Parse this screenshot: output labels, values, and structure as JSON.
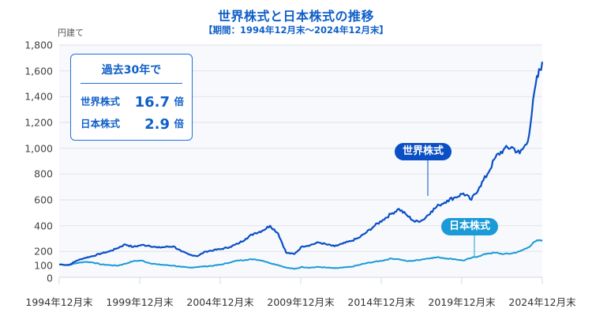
{
  "header": {
    "title": "世界株式と日本株式の推移",
    "subtitle": "【期間：1994年12月末～2024年12月末】"
  },
  "axis": {
    "unit_label": "円建て",
    "y_ticks": [
      "0",
      "100",
      "200",
      "400",
      "600",
      "800",
      "1,000",
      "1,200",
      "1,400",
      "1,600",
      "1,800"
    ],
    "x_ticks": [
      "1994年12月末",
      "1999年12月末",
      "2004年12月末",
      "2009年12月末",
      "2014年12月末",
      "2019年12月末",
      "2024年12月末"
    ]
  },
  "infobox": {
    "heading": "過去30年で",
    "rows": [
      {
        "label": "世界株式",
        "value": "16.7",
        "suffix": "倍"
      },
      {
        "label": "日本株式",
        "value": "2.9",
        "suffix": "倍"
      }
    ]
  },
  "series_labels": {
    "world": "世界株式",
    "japan": "日本株式"
  },
  "colors": {
    "world": "#0a4fc4",
    "japan": "#1a9ad6",
    "title": "#0f5fc8",
    "plot_bg": "#f7f9fd",
    "grid": "#e3e5ea"
  },
  "chart_data": {
    "type": "line",
    "title": "世界株式と日本株式の推移",
    "subtitle": "【期間：1994年12月末～2024年12月末】",
    "xlabel": "",
    "ylabel": "円建て",
    "ylim": [
      0,
      1800
    ],
    "y_ticks": [
      0,
      100,
      200,
      400,
      600,
      800,
      1000,
      1200,
      1400,
      1600,
      1800
    ],
    "x_tick_labels": [
      "1994年12月末",
      "1999年12月末",
      "2004年12月末",
      "2009年12月末",
      "2014年12月末",
      "2019年12月末",
      "2024年12月末"
    ],
    "grid": true,
    "legend": "inline labels",
    "x": [
      1994.9,
      1995.5,
      1996.0,
      1996.5,
      1997.0,
      1997.5,
      1998.0,
      1998.5,
      1999.0,
      1999.5,
      2000.0,
      2000.5,
      2001.0,
      2001.5,
      2002.0,
      2002.5,
      2003.0,
      2003.5,
      2004.0,
      2004.5,
      2005.0,
      2005.5,
      2006.0,
      2006.5,
      2007.0,
      2007.5,
      2008.0,
      2008.5,
      2009.0,
      2009.5,
      2010.0,
      2010.5,
      2011.0,
      2011.5,
      2012.0,
      2012.5,
      2013.0,
      2013.5,
      2014.0,
      2014.5,
      2015.0,
      2015.5,
      2016.0,
      2016.5,
      2017.0,
      2017.5,
      2018.0,
      2018.5,
      2019.0,
      2019.5,
      2020.0,
      2020.5,
      2021.0,
      2021.5,
      2022.0,
      2022.5,
      2023.0,
      2023.5,
      2024.0,
      2024.5,
      2024.9
    ],
    "series": [
      {
        "name": "世界株式",
        "values": [
          100,
          95,
          130,
          150,
          165,
          185,
          200,
          225,
          255,
          235,
          250,
          245,
          230,
          235,
          240,
          200,
          175,
          165,
          200,
          210,
          220,
          235,
          260,
          300,
          340,
          360,
          400,
          340,
          190,
          180,
          240,
          250,
          270,
          255,
          240,
          260,
          280,
          305,
          350,
          400,
          445,
          490,
          530,
          480,
          430,
          445,
          510,
          560,
          595,
          620,
          650,
          600,
          700,
          800,
          930,
          990,
          1010,
          960,
          1050,
          1500,
          1670
        ]
      },
      {
        "name": "日本株式",
        "values": [
          100,
          95,
          110,
          120,
          115,
          100,
          95,
          90,
          105,
          125,
          130,
          110,
          100,
          95,
          90,
          80,
          75,
          80,
          85,
          90,
          100,
          115,
          130,
          135,
          140,
          130,
          110,
          95,
          75,
          65,
          80,
          75,
          80,
          75,
          70,
          75,
          80,
          95,
          110,
          120,
          130,
          145,
          140,
          125,
          130,
          140,
          150,
          155,
          145,
          140,
          130,
          150,
          165,
          185,
          190,
          180,
          185,
          200,
          230,
          280,
          290
        ]
      }
    ]
  }
}
